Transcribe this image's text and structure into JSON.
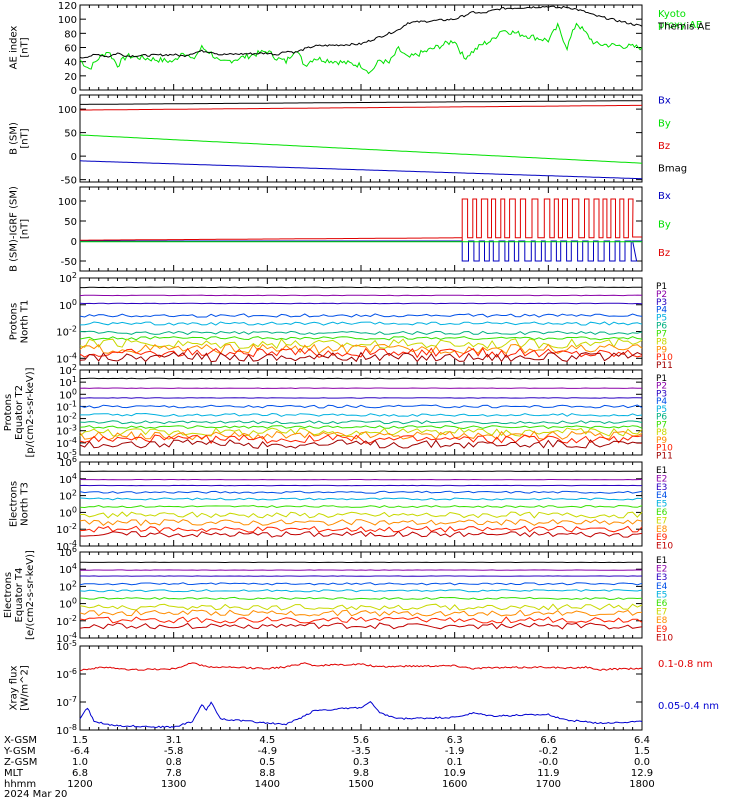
{
  "chart_data": [
    {
      "type": "line",
      "ylabel": "AE index\n[nT]",
      "ylim": [
        0,
        120
      ],
      "yticks": [
        "0",
        "20",
        "40",
        "60",
        "80",
        "100",
        "120"
      ],
      "series": [
        {
          "name": "Kyoto\nproxy AE",
          "color": "#00e000",
          "x": [
            1200,
            1210,
            1220,
            1230,
            1240,
            1250,
            1300,
            1310,
            1320,
            1330,
            1340,
            1350,
            1400,
            1410,
            1420,
            1430,
            1440,
            1450,
            1500,
            1510,
            1520,
            1530,
            1540,
            1550,
            1600,
            1610,
            1620,
            1630,
            1640,
            1650,
            1700,
            1710,
            1720,
            1730,
            1740,
            1750,
            1800
          ],
          "y": [
            42,
            30,
            45,
            55,
            35,
            48,
            40,
            55,
            42,
            60,
            52,
            38,
            55,
            45,
            40,
            58,
            35,
            45,
            35,
            25,
            42,
            38,
            58,
            45,
            70,
            45,
            55,
            65,
            70,
            85,
            70,
            90,
            60,
            95,
            80,
            65,
            60
          ]
        },
        {
          "name": "Themis AE",
          "color": "#000000",
          "x": [
            1200,
            1210,
            1220,
            1230,
            1240,
            1250,
            1300,
            1310,
            1320,
            1330,
            1340,
            1350,
            1400,
            1410,
            1420,
            1430,
            1440,
            1450,
            1500,
            1510,
            1520,
            1530,
            1540,
            1550,
            1600,
            1610,
            1620,
            1630,
            1640,
            1650,
            1700,
            1710,
            1720,
            1730,
            1740,
            1750,
            1800
          ],
          "y": [
            45,
            48,
            50,
            47,
            52,
            48,
            50,
            48,
            52,
            55,
            54,
            50,
            52,
            50,
            55,
            53,
            58,
            62,
            65,
            70,
            75,
            80,
            85,
            95,
            100,
            105,
            110,
            108,
            112,
            115,
            118,
            116,
            117,
            114,
            110,
            105,
            90
          ]
        }
      ]
    },
    {
      "type": "line",
      "ylabel": "B (SM)\n[nT]",
      "ylim": [
        -55,
        130
      ],
      "yticks": [
        "-50",
        "0",
        "50",
        "100"
      ],
      "series": [
        {
          "name": "Bx",
          "color": "#0000c0",
          "x": [
            1200,
            1800
          ],
          "y": [
            -10,
            -48
          ]
        },
        {
          "name": "By",
          "color": "#00e000",
          "x": [
            1200,
            1800
          ],
          "y": [
            45,
            -15
          ]
        },
        {
          "name": "Bz",
          "color": "#e00000",
          "x": [
            1200,
            1800
          ],
          "y": [
            98,
            108
          ]
        },
        {
          "name": "Bmag",
          "color": "#000000",
          "x": [
            1200,
            1800
          ],
          "y": [
            110,
            118
          ]
        }
      ]
    },
    {
      "type": "line",
      "ylabel": "B (SM)-IGRF (SM)\n[nT]",
      "ylim": [
        -75,
        135
      ],
      "yticks": [
        "-50",
        "0",
        "50",
        "100"
      ],
      "series": [
        {
          "name": "Bx",
          "color": "#0000c0",
          "x": [
            1200,
            1608,
            1800
          ],
          "y": [
            0,
            0,
            0
          ],
          "osc_amp": -50
        },
        {
          "name": "By",
          "color": "#00e000",
          "x": [
            1200,
            1608,
            1800
          ],
          "y": [
            -2,
            -2,
            -2
          ]
        },
        {
          "name": "Bz",
          "color": "#e00000",
          "x": [
            1200,
            1608,
            1800
          ],
          "y": [
            2,
            8,
            10
          ],
          "osc_amp": 105
        }
      ]
    },
    {
      "type": "line",
      "ylabel": "Protons\nNorth T1",
      "log": true,
      "ylim": [
        -4.5,
        2
      ],
      "yticks": [
        "10^2",
        "10^0",
        "10^-2",
        "10^-4"
      ],
      "series": [
        {
          "name": "P1",
          "color": "#000000",
          "logy": 1.3
        },
        {
          "name": "P2",
          "color": "#8a00a8",
          "logy": 0.7
        },
        {
          "name": "P3",
          "color": "#2a00c0",
          "logy": 0.1
        },
        {
          "name": "P4",
          "color": "#0050e8",
          "logy": -0.8
        },
        {
          "name": "P5",
          "color": "#00b0e0",
          "logy": -1.4
        },
        {
          "name": "P6",
          "color": "#00b080",
          "logy": -2.1
        },
        {
          "name": "P7",
          "color": "#38e000",
          "logy": -2.5
        },
        {
          "name": "P8",
          "color": "#c8d800",
          "logy": -2.9
        },
        {
          "name": "P9",
          "color": "#ff8c00",
          "logy": -3.3
        },
        {
          "name": "P10",
          "color": "#ff2000",
          "logy": -3.6
        },
        {
          "name": "P11",
          "color": "#a00000",
          "logy": -3.9
        }
      ]
    },
    {
      "type": "line",
      "ylabel": "Protons\nEquator T2\n[p/(cm2-s-sr-keV)]",
      "log": true,
      "ylim": [
        -5,
        2
      ],
      "yticks": [
        "10^2",
        "10^1",
        "10^0",
        "10^-1",
        "10^-2",
        "10^-3",
        "10^-4",
        "10^-5"
      ],
      "series": [
        {
          "name": "P1",
          "color": "#000000",
          "logy": 1.3
        },
        {
          "name": "P2",
          "color": "#8a00a8",
          "logy": 0.5
        },
        {
          "name": "P3",
          "color": "#2a00c0",
          "logy": -0.3
        },
        {
          "name": "P4",
          "color": "#0050e8",
          "logy": -1.0
        },
        {
          "name": "P5",
          "color": "#00b0e0",
          "logy": -1.7
        },
        {
          "name": "P6",
          "color": "#00b080",
          "logy": -2.3
        },
        {
          "name": "P7",
          "color": "#38e000",
          "logy": -2.7
        },
        {
          "name": "P8",
          "color": "#c8d800",
          "logy": -3.1
        },
        {
          "name": "P9",
          "color": "#ff8c00",
          "logy": -3.4
        },
        {
          "name": "P10",
          "color": "#ff2000",
          "logy": -3.7
        },
        {
          "name": "P11",
          "color": "#a00000",
          "logy": -4.1
        }
      ]
    },
    {
      "type": "line",
      "ylabel": "Electrons\nNorth T3",
      "log": true,
      "ylim": [
        -4,
        6
      ],
      "yticks": [
        "10^6",
        "10^4",
        "10^2",
        "10^0",
        "10^-2",
        "10^-4"
      ],
      "series": [
        {
          "name": "E1",
          "color": "#000000",
          "logy": 4.9
        },
        {
          "name": "E2",
          "color": "#8a00a8",
          "logy": 3.9
        },
        {
          "name": "E3",
          "color": "#2a00c0",
          "logy": 3.2
        },
        {
          "name": "E4",
          "color": "#0050e8",
          "logy": 2.4
        },
        {
          "name": "E5",
          "color": "#00b0e0",
          "logy": 1.6
        },
        {
          "name": "E6",
          "color": "#38e000",
          "logy": 0.7
        },
        {
          "name": "E7",
          "color": "#c8d800",
          "logy": -0.3
        },
        {
          "name": "E8",
          "color": "#ff8c00",
          "logy": -1.2
        },
        {
          "name": "E9",
          "color": "#ff2000",
          "logy": -2.0
        },
        {
          "name": "E10",
          "color": "#c00000",
          "logy": -2.6
        }
      ]
    },
    {
      "type": "line",
      "ylabel": "Electrons\nEquator T4\n[e/(cm2-s-sr-keV)]",
      "log": true,
      "ylim": [
        -4,
        6
      ],
      "yticks": [
        "10^6",
        "10^4",
        "10^2",
        "10^0",
        "10^-2",
        "10^-4"
      ],
      "series": [
        {
          "name": "E1",
          "color": "#000000",
          "logy": 4.8
        },
        {
          "name": "E2",
          "color": "#8a00a8",
          "logy": 3.9
        },
        {
          "name": "E3",
          "color": "#2a00c0",
          "logy": 3.2
        },
        {
          "name": "E4",
          "color": "#0050e8",
          "logy": 2.3
        },
        {
          "name": "E5",
          "color": "#00b0e0",
          "logy": 1.5
        },
        {
          "name": "E6",
          "color": "#38e000",
          "logy": 0.6
        },
        {
          "name": "E7",
          "color": "#c8d800",
          "logy": -0.4
        },
        {
          "name": "E8",
          "color": "#ff8c00",
          "logy": -1.1
        },
        {
          "name": "E9",
          "color": "#ff2000",
          "logy": -1.9
        },
        {
          "name": "E10",
          "color": "#c00000",
          "logy": -2.6
        }
      ]
    },
    {
      "type": "line",
      "ylabel": "Xray flux\n[W/m^2]",
      "log": true,
      "ylim": [
        -8,
        -5
      ],
      "yticks": [
        "10^-5",
        "10^-6",
        "10^-7",
        "10^-8"
      ],
      "series": [
        {
          "name": "0.1-0.8 nm",
          "color": "#e00000",
          "x": [
            1200,
            1215,
            1230,
            1250,
            1300,
            1320,
            1330,
            1340,
            1400,
            1420,
            1440,
            1450,
            1500,
            1520,
            1540,
            1600,
            1620,
            1640,
            1700,
            1720,
            1740,
            1750,
            1800
          ],
          "y": [
            -5.85,
            -5.8,
            -5.75,
            -5.85,
            -5.82,
            -5.6,
            -5.7,
            -5.75,
            -5.8,
            -5.75,
            -5.6,
            -5.7,
            -5.65,
            -5.75,
            -5.72,
            -5.7,
            -5.8,
            -5.78,
            -5.75,
            -5.8,
            -5.75,
            -5.85,
            -5.8
          ]
        },
        {
          "name": "0.05-0.4 nm",
          "color": "#0000d0",
          "x": [
            1200,
            1208,
            1215,
            1230,
            1245,
            1300,
            1320,
            1330,
            1335,
            1340,
            1350,
            1400,
            1420,
            1440,
            1450,
            1500,
            1510,
            1520,
            1540,
            1600,
            1620,
            1640,
            1700,
            1720,
            1740,
            1750,
            1800
          ],
          "y": [
            -7.6,
            -7.2,
            -7.7,
            -7.8,
            -7.85,
            -7.9,
            -7.7,
            -7.1,
            -7.3,
            -7.0,
            -7.6,
            -7.75,
            -7.8,
            -7.5,
            -7.3,
            -7.2,
            -7.0,
            -7.4,
            -7.6,
            -7.55,
            -7.4,
            -7.5,
            -7.45,
            -7.65,
            -7.7,
            -7.75,
            -7.7
          ]
        }
      ]
    }
  ],
  "orbit": {
    "rows": [
      {
        "label": "X-GSM",
        "values": [
          "1.5",
          "3.1",
          "4.5",
          "5.6",
          "6.3",
          "6.6",
          "6.4"
        ]
      },
      {
        "label": "Y-GSM",
        "values": [
          "-6.4",
          "-5.8",
          "-4.9",
          "-3.5",
          "-1.9",
          "-0.2",
          "1.5"
        ]
      },
      {
        "label": "Z-GSM",
        "values": [
          "1.0",
          "0.8",
          "0.5",
          "0.3",
          "0.1",
          "-0.0",
          "0.0"
        ]
      },
      {
        "label": "MLT",
        "values": [
          "6.8",
          "7.8",
          "8.8",
          "9.8",
          "10.9",
          "11.9",
          "12.9"
        ]
      },
      {
        "label": "hhmm",
        "values": [
          "1200",
          "1300",
          "1400",
          "1500",
          "1600",
          "1700",
          "1800"
        ]
      }
    ],
    "date": "2024 Mar 20"
  }
}
